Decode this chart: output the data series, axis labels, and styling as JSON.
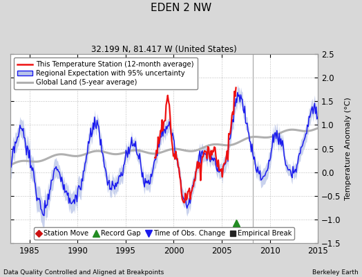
{
  "title": "EDEN 2 NW",
  "subtitle": "32.199 N, 81.417 W (United States)",
  "ylabel": "Temperature Anomaly (°C)",
  "xlabel_left": "Data Quality Controlled and Aligned at Breakpoints",
  "xlabel_right": "Berkeley Earth",
  "ylim": [
    -1.5,
    2.5
  ],
  "xlim": [
    1983.0,
    2015.0
  ],
  "xticks": [
    1985,
    1990,
    1995,
    2000,
    2005,
    2010,
    2015
  ],
  "yticks": [
    -1.5,
    -1.0,
    -0.5,
    0.0,
    0.5,
    1.0,
    1.5,
    2.0,
    2.5
  ],
  "bg_color": "#d8d8d8",
  "plot_bg_color": "#ffffff",
  "vertical_line_x": 2008.2,
  "record_gap_x": 2006.5,
  "record_gap_y": -1.08,
  "legend_labels": [
    "This Temperature Station (12-month average)",
    "Regional Expectation with 95% uncertainty",
    "Global Land (5-year average)"
  ],
  "bottom_legend": [
    "Station Move",
    "Record Gap",
    "Time of Obs. Change",
    "Empirical Break"
  ],
  "station_start": 1998.0,
  "station_end": 2006.5
}
